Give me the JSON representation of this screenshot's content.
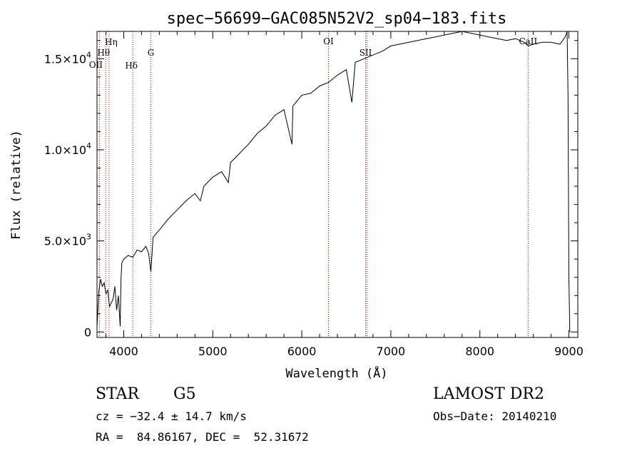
{
  "chart_data": {
    "type": "line",
    "title": "spec−56699−GAC085N52V2_sp04−183.fits",
    "xlabel": "Wavelength (Å)",
    "ylabel": "Flux (relative)",
    "xlim": [
      3700,
      9100
    ],
    "ylim": [
      -300,
      16500
    ],
    "x_ticks": [
      4000,
      5000,
      6000,
      7000,
      8000,
      9000
    ],
    "y_ticks": [
      {
        "value": 0,
        "label": "0",
        "mantissa": "",
        "exp": ""
      },
      {
        "value": 5000,
        "label": "",
        "mantissa": "5.0×10",
        "exp": "3"
      },
      {
        "value": 10000,
        "label": "",
        "mantissa": "1.0×10",
        "exp": "4"
      },
      {
        "value": 15000,
        "label": "",
        "mantissa": "1.5×10",
        "exp": "4"
      }
    ],
    "grid": false,
    "lines": [
      {
        "name": "Hη",
        "x": 3835
      },
      {
        "name": "Hθ",
        "x": 3798
      },
      {
        "name": "OII",
        "x": 3727
      },
      {
        "name": "Hδ",
        "x": 4102
      },
      {
        "name": "G",
        "x": 4305
      },
      {
        "name": "OI",
        "x": 6300
      },
      {
        "name": "SII",
        "x": 6717
      },
      {
        "name": "SII",
        "x": 6731
      },
      {
        "name": "CaII",
        "x": 8542
      }
    ],
    "spectrum": {
      "x": [
        3700,
        3720,
        3740,
        3760,
        3780,
        3800,
        3820,
        3840,
        3860,
        3880,
        3900,
        3920,
        3940,
        3960,
        3970,
        3980,
        4000,
        4050,
        4102,
        4150,
        4200,
        4250,
        4280,
        4305,
        4330,
        4400,
        4500,
        4600,
        4700,
        4800,
        4861,
        4900,
        5000,
        5100,
        5175,
        5200,
        5300,
        5400,
        5500,
        5600,
        5700,
        5800,
        5890,
        5900,
        6000,
        6100,
        6200,
        6300,
        6400,
        6500,
        6563,
        6600,
        6700,
        6800,
        6900,
        7000,
        7100,
        7200,
        7300,
        7400,
        7500,
        7600,
        7700,
        7800,
        7900,
        8000,
        8100,
        8200,
        8300,
        8400,
        8500,
        8542,
        8600,
        8700,
        8800,
        8900,
        8960,
        8980,
        8990,
        9000,
        9010
      ],
      "y": [
        300,
        2200,
        2900,
        2500,
        2700,
        2100,
        2300,
        1400,
        1600,
        1800,
        2500,
        1200,
        2000,
        300,
        3000,
        3800,
        4000,
        4200,
        4100,
        4500,
        4400,
        4700,
        4300,
        3300,
        5200,
        5600,
        6200,
        6700,
        7200,
        7600,
        7200,
        8000,
        8500,
        8800,
        8200,
        9300,
        9800,
        10300,
        10900,
        11300,
        11900,
        12200,
        10300,
        12400,
        13000,
        13100,
        13500,
        13700,
        14100,
        14400,
        12600,
        14800,
        15000,
        15200,
        15400,
        15700,
        15800,
        15900,
        16000,
        16100,
        16200,
        16300,
        16400,
        16500,
        16400,
        16300,
        16200,
        16100,
        16000,
        16100,
        15900,
        15700,
        15800,
        15900,
        15900,
        15800,
        16200,
        16800,
        13000,
        3000,
        0
      ]
    }
  },
  "info": {
    "class": "STAR",
    "subclass": "G5",
    "survey": "LAMOST DR2",
    "cz": "cz = −32.4 ± 14.7 km/s",
    "obs_date": "Obs−Date: 20140210",
    "coords": "RA =  84.86167, DEC =  52.31672"
  }
}
